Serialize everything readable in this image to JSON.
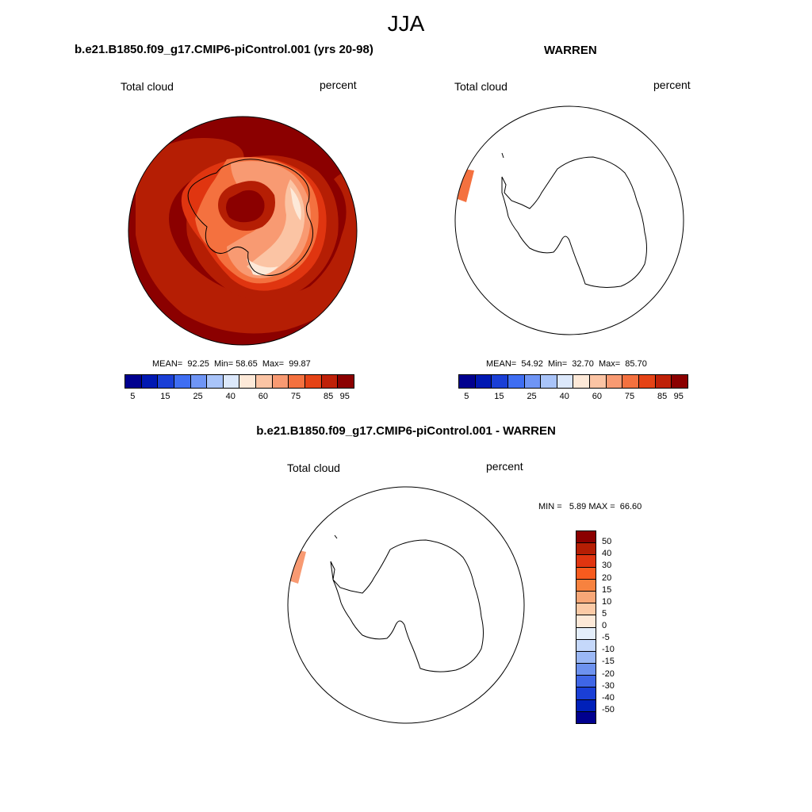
{
  "season": "JJA",
  "panels": [
    {
      "title": "b.e21.B1850.f09_g17.CMIP6-piControl.001 (yrs 20-98)",
      "left_label": "Total cloud",
      "right_label": "percent",
      "stats": {
        "mean_label": "MEAN=",
        "mean": "92.25",
        "min_label": "Min=",
        "min": "58.65",
        "max_label": "Max=",
        "max": "99.87"
      }
    },
    {
      "title": "WARREN",
      "left_label": "Total cloud",
      "right_label": "percent",
      "stats": {
        "mean_label": "MEAN=",
        "mean": "54.92",
        "min_label": "Min=",
        "min": "32.70",
        "max_label": "Max=",
        "max": "85.70"
      }
    },
    {
      "title": "b.e21.B1850.f09_g17.CMIP6-piControl.001 - WARREN",
      "left_label": "Total cloud",
      "right_label": "percent",
      "stats": {
        "min_label": "MIN =",
        "min": "5.89",
        "max_label": "MAX =",
        "max": "66.60"
      }
    }
  ],
  "colorbar_abs": {
    "colors": [
      "#00008f",
      "#0018b2",
      "#1a3fd6",
      "#3f6ef2",
      "#6f95f5",
      "#a9c4f9",
      "#dce8fb",
      "#fde9d8",
      "#fbc4a4",
      "#f89a72",
      "#f4713f",
      "#e54316",
      "#bf2108",
      "#8b0000"
    ],
    "tick_labels": [
      "5",
      "15",
      "25",
      "40",
      "60",
      "75",
      "85",
      "95"
    ]
  },
  "colorbar_diff": {
    "colors": [
      "#8b0000",
      "#b51e04",
      "#e03510",
      "#f85b1e",
      "#f7823f",
      "#f8a777",
      "#fbcaa6",
      "#fde9d8",
      "#e4eefb",
      "#c5d8fa",
      "#9bb8f5",
      "#6d92ef",
      "#3f66e6",
      "#1a3fd6",
      "#0020b9",
      "#00008f"
    ],
    "tick_labels": [
      "50",
      "40",
      "30",
      "20",
      "15",
      "10",
      "5",
      "0",
      "-5",
      "-10",
      "-15",
      "-20",
      "-30",
      "-40",
      "-50"
    ]
  },
  "map_colors": {
    "ocean_high": "#8b0000",
    "level_2": "#b51e04",
    "level_3": "#e03510",
    "level_4": "#f4713f",
    "level_5": "#f89a72",
    "level_6": "#fbc4a4",
    "level_7": "#fde9d8",
    "coast": "#000000"
  }
}
